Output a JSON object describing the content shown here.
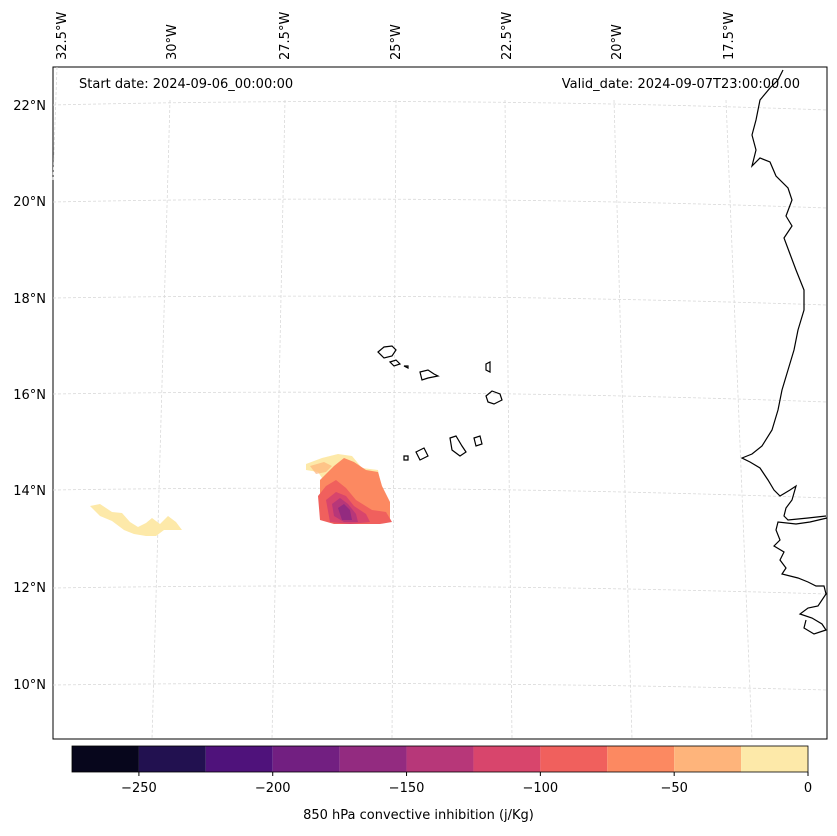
{
  "header": {
    "start_date": "Start date: 2024-09-06_00:00:00",
    "valid_date": "Valid_date: 2024-09-07T23:00:00.00"
  },
  "lon_labels": [
    "32.5°W",
    "30°W",
    "27.5°W",
    "25°W",
    "22.5°W",
    "20°W",
    "17.5°W"
  ],
  "lat_labels": [
    "22°N",
    "20°N",
    "18°N",
    "16°N",
    "14°N",
    "12°N",
    "10°N"
  ],
  "colorbar": {
    "label": "850 hPa convective inhibition (j/Kg)",
    "tick_labels": [
      "−250",
      "−200",
      "−150",
      "−100",
      "−50",
      "0"
    ],
    "bins": [
      -275,
      -250,
      -225,
      -200,
      -175,
      -150,
      -125,
      -100,
      -75,
      -50,
      -25,
      0
    ],
    "colors": [
      "#07061c",
      "#221150",
      "#4f127b",
      "#721f81",
      "#932b80",
      "#b73779",
      "#d8456c",
      "#f0605d",
      "#fc8961",
      "#feb47b",
      "#fde9a9"
    ]
  },
  "colors": {
    "coastline": "#000000",
    "gridline": "#d9d9d9"
  }
}
